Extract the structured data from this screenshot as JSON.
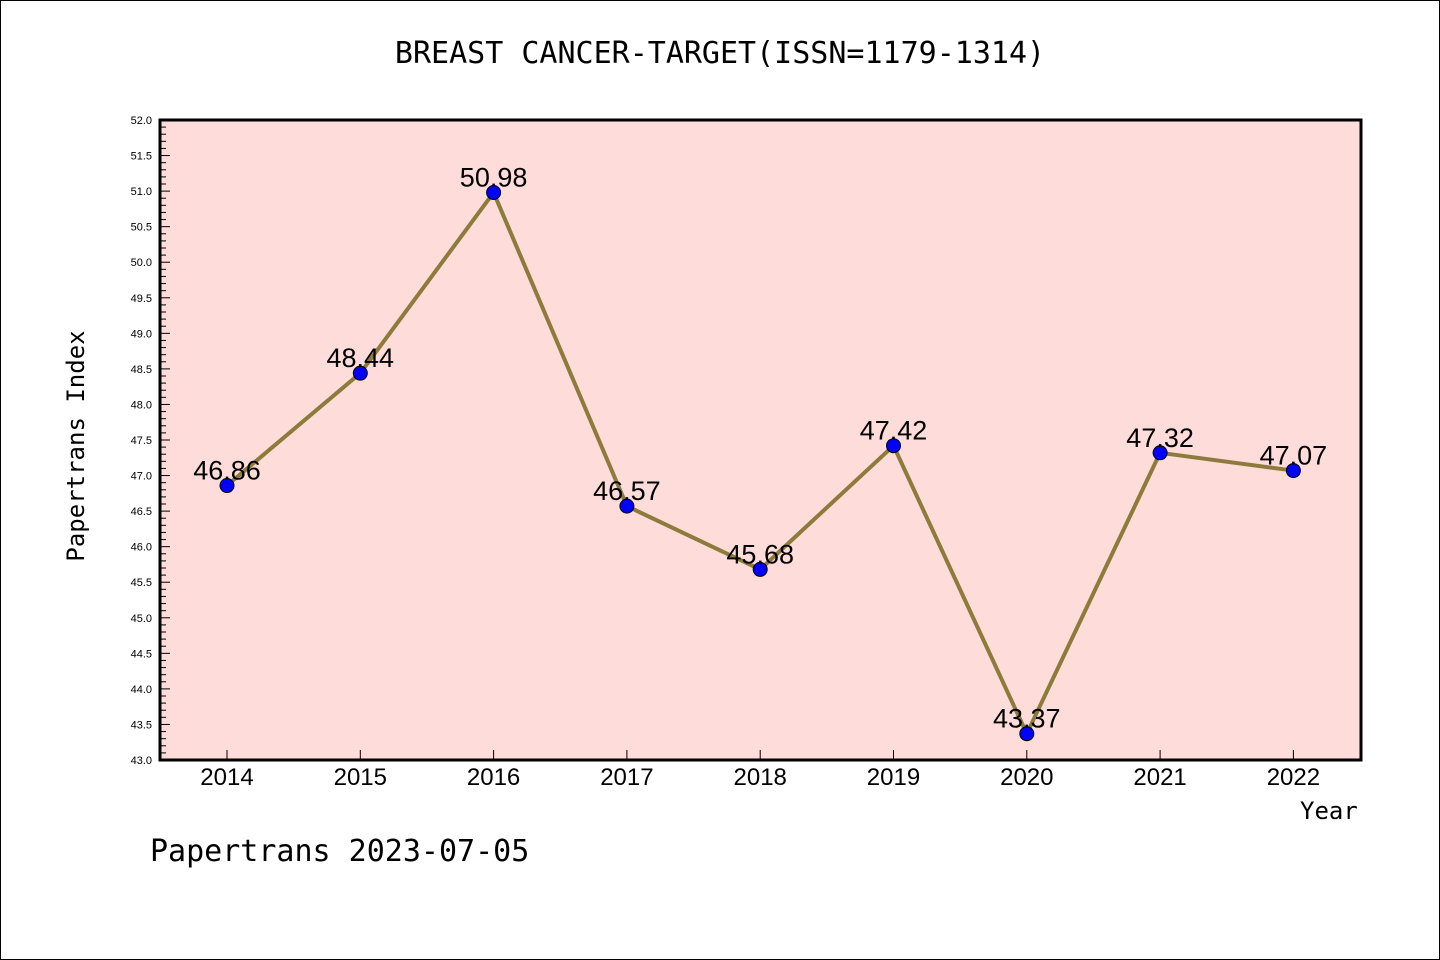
{
  "chart_data": {
    "type": "line",
    "title": "BREAST CANCER-TARGET(ISSN=1179-1314)",
    "xlabel": "Year",
    "ylabel": "Papertrans Index",
    "ylim": [
      43.0,
      52.0
    ],
    "y_ticks": [
      "43.0",
      "43.5",
      "44.0",
      "44.5",
      "45.0",
      "45.5",
      "46.0",
      "46.5",
      "47.0",
      "47.5",
      "48.0",
      "48.5",
      "49.0",
      "49.5",
      "50.0",
      "50.5",
      "51.0",
      "51.5",
      "52.0"
    ],
    "categories": [
      "2014",
      "2015",
      "2016",
      "2017",
      "2018",
      "2019",
      "2020",
      "2021",
      "2022"
    ],
    "series": [
      {
        "values": [
          46.86,
          48.44,
          50.98,
          46.57,
          45.68,
          47.42,
          43.37,
          47.32,
          47.07
        ],
        "labels": [
          "46.86",
          "48.44",
          "50.98",
          "46.57",
          "45.68",
          "47.42",
          "43.37",
          "47.32",
          "47.07"
        ]
      }
    ],
    "grid": false,
    "colors": {
      "plot_background": "#FDDCDA",
      "line": "#8E7A3A",
      "marker": "#0000FF"
    }
  },
  "footer": "Papertrans 2023-07-05"
}
